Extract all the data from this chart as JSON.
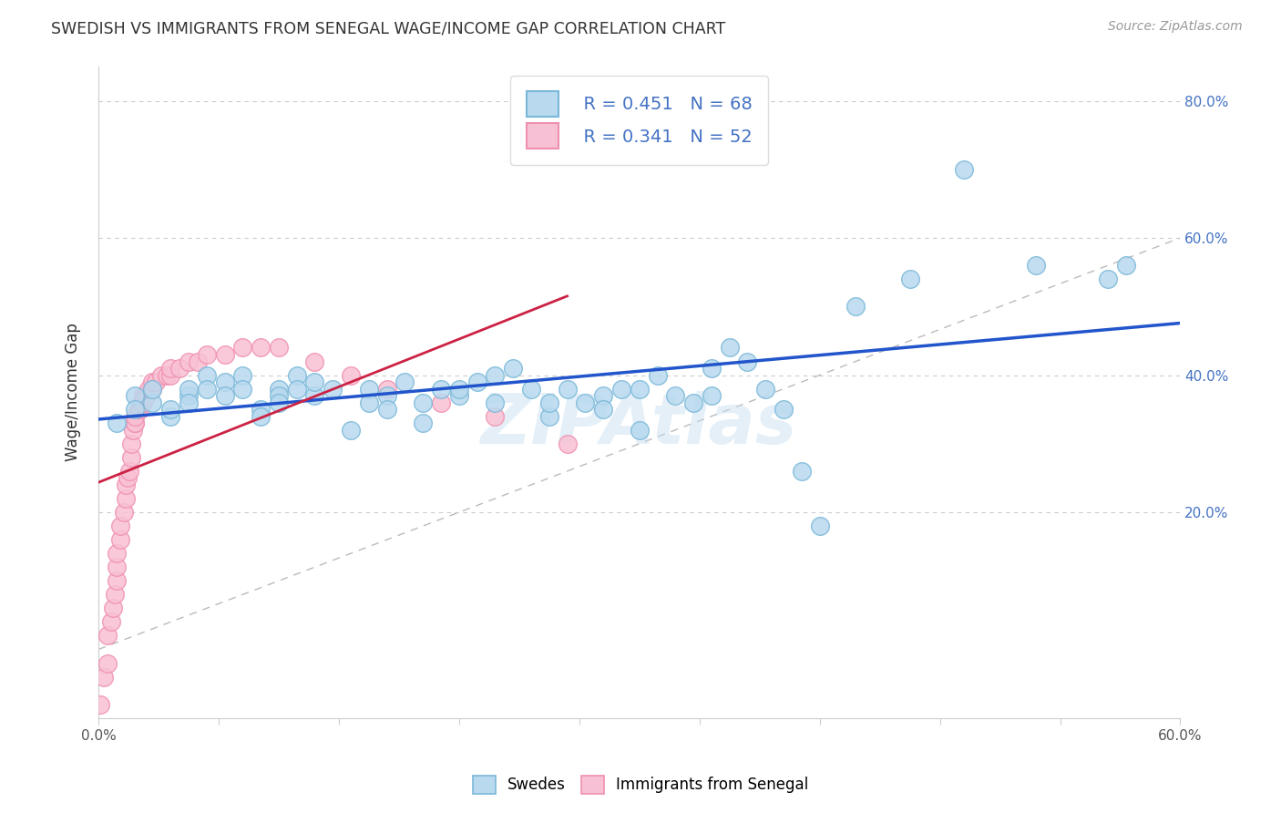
{
  "title": "SWEDISH VS IMMIGRANTS FROM SENEGAL WAGE/INCOME GAP CORRELATION CHART",
  "source": "Source: ZipAtlas.com",
  "ylabel": "Wage/Income Gap",
  "xlim": [
    0.0,
    0.6
  ],
  "ylim": [
    -0.1,
    0.85
  ],
  "xticklabels_show": [
    "0.0%",
    "",
    "",
    "",
    "",
    "",
    "",
    "",
    "",
    "60.0%"
  ],
  "ytick_positions": [
    0.2,
    0.4,
    0.6,
    0.8
  ],
  "ytick_labels": [
    "20.0%",
    "40.0%",
    "60.0%",
    "80.0%"
  ],
  "blue_color": "#7ab8d9",
  "blue_fill": "#b8d9ee",
  "pink_color": "#f090b0",
  "pink_fill": "#f8c0d4",
  "trend_blue": "#2255cc",
  "trend_pink": "#cc2244",
  "trend_pink_dashed_color": "#e08090",
  "R_blue": 0.451,
  "N_blue": 68,
  "R_pink": 0.341,
  "N_pink": 52,
  "legend_label_blue": "Swedes",
  "legend_label_pink": "Immigrants from Senegal",
  "watermark": "ZIPAtlas",
  "blue_scatter_x": [
    0.01,
    0.02,
    0.02,
    0.03,
    0.03,
    0.04,
    0.04,
    0.05,
    0.05,
    0.05,
    0.06,
    0.06,
    0.07,
    0.07,
    0.08,
    0.08,
    0.09,
    0.09,
    0.1,
    0.1,
    0.1,
    0.11,
    0.11,
    0.12,
    0.12,
    0.13,
    0.14,
    0.15,
    0.15,
    0.16,
    0.16,
    0.17,
    0.18,
    0.18,
    0.19,
    0.2,
    0.2,
    0.21,
    0.22,
    0.22,
    0.23,
    0.24,
    0.25,
    0.25,
    0.26,
    0.27,
    0.28,
    0.28,
    0.29,
    0.3,
    0.3,
    0.31,
    0.32,
    0.33,
    0.34,
    0.34,
    0.35,
    0.36,
    0.37,
    0.38,
    0.39,
    0.4,
    0.42,
    0.45,
    0.48,
    0.52,
    0.56,
    0.57
  ],
  "blue_scatter_y": [
    0.33,
    0.37,
    0.35,
    0.36,
    0.38,
    0.34,
    0.35,
    0.37,
    0.38,
    0.36,
    0.4,
    0.38,
    0.39,
    0.37,
    0.4,
    0.38,
    0.35,
    0.34,
    0.38,
    0.37,
    0.36,
    0.4,
    0.38,
    0.37,
    0.39,
    0.38,
    0.32,
    0.38,
    0.36,
    0.37,
    0.35,
    0.39,
    0.36,
    0.33,
    0.38,
    0.37,
    0.38,
    0.39,
    0.36,
    0.4,
    0.41,
    0.38,
    0.34,
    0.36,
    0.38,
    0.36,
    0.37,
    0.35,
    0.38,
    0.32,
    0.38,
    0.4,
    0.37,
    0.36,
    0.41,
    0.37,
    0.44,
    0.42,
    0.38,
    0.35,
    0.26,
    0.18,
    0.5,
    0.54,
    0.7,
    0.56,
    0.54,
    0.56
  ],
  "pink_scatter_x": [
    0.001,
    0.003,
    0.005,
    0.005,
    0.007,
    0.008,
    0.009,
    0.01,
    0.01,
    0.01,
    0.012,
    0.012,
    0.014,
    0.015,
    0.015,
    0.016,
    0.017,
    0.018,
    0.018,
    0.019,
    0.02,
    0.02,
    0.02,
    0.022,
    0.023,
    0.024,
    0.025,
    0.025,
    0.026,
    0.027,
    0.028,
    0.03,
    0.03,
    0.032,
    0.035,
    0.038,
    0.04,
    0.04,
    0.045,
    0.05,
    0.055,
    0.06,
    0.07,
    0.08,
    0.09,
    0.1,
    0.12,
    0.14,
    0.16,
    0.19,
    0.22,
    0.26
  ],
  "pink_scatter_y": [
    -0.08,
    -0.04,
    -0.02,
    0.02,
    0.04,
    0.06,
    0.08,
    0.1,
    0.12,
    0.14,
    0.16,
    0.18,
    0.2,
    0.22,
    0.24,
    0.25,
    0.26,
    0.28,
    0.3,
    0.32,
    0.33,
    0.33,
    0.34,
    0.35,
    0.35,
    0.36,
    0.36,
    0.37,
    0.37,
    0.37,
    0.38,
    0.38,
    0.39,
    0.39,
    0.4,
    0.4,
    0.4,
    0.41,
    0.41,
    0.42,
    0.42,
    0.43,
    0.43,
    0.44,
    0.44,
    0.44,
    0.42,
    0.4,
    0.38,
    0.36,
    0.34,
    0.3
  ],
  "background_color": "#ffffff",
  "grid_color": "#cccccc"
}
